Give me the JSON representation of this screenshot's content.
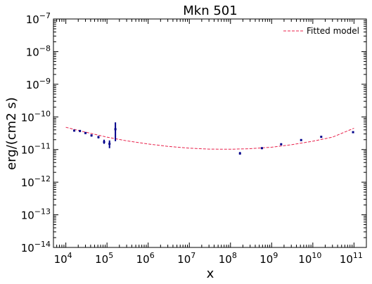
{
  "chart_data": {
    "type": "scatter",
    "title": "Mkn 501",
    "xlabel": "x",
    "ylabel": "erg/(cm2 s)",
    "xscale": "log",
    "yscale": "log",
    "xlim": [
      5000,
      200000000000.0
    ],
    "ylim": [
      1e-14,
      1e-07
    ],
    "x_ticks": [
      {
        "base": "10",
        "exp": "4",
        "value": 10000.0
      },
      {
        "base": "10",
        "exp": "5",
        "value": 100000.0
      },
      {
        "base": "10",
        "exp": "6",
        "value": 1000000.0
      },
      {
        "base": "10",
        "exp": "7",
        "value": 10000000.0
      },
      {
        "base": "10",
        "exp": "8",
        "value": 100000000.0
      },
      {
        "base": "10",
        "exp": "9",
        "value": 1000000000.0
      },
      {
        "base": "10",
        "exp": "10",
        "value": 10000000000.0
      },
      {
        "base": "10",
        "exp": "11",
        "value": 100000000000.0
      }
    ],
    "y_ticks": [
      {
        "base": "10",
        "exp": "−7",
        "value": 1e-07
      },
      {
        "base": "10",
        "exp": "−8",
        "value": 1e-08
      },
      {
        "base": "10",
        "exp": "−9",
        "value": 1e-09
      },
      {
        "base": "10",
        "exp": "−10",
        "value": 1e-10
      },
      {
        "base": "10",
        "exp": "−11",
        "value": 1e-11
      },
      {
        "base": "10",
        "exp": "−12",
        "value": 1e-12
      },
      {
        "base": "10",
        "exp": "−13",
        "value": 1e-13
      },
      {
        "base": "10",
        "exp": "−14",
        "value": 1e-14
      }
    ],
    "legend": {
      "position": "top-right",
      "entries": [
        {
          "label": "Fitted model",
          "style": "dashed",
          "color": "#e8214b"
        }
      ]
    },
    "data_points": [
      {
        "x": 16000.0,
        "y": 3.8e-11,
        "ylo": 3.6e-11,
        "yhi": 4e-11
      },
      {
        "x": 22000.0,
        "y": 3.7e-11,
        "ylo": 3.5e-11,
        "yhi": 3.9e-11
      },
      {
        "x": 30000.0,
        "y": 3.2e-11,
        "ylo": 3e-11,
        "yhi": 3.4e-11
      },
      {
        "x": 42000.0,
        "y": 2.7e-11,
        "ylo": 2.5e-11,
        "yhi": 2.9e-11
      },
      {
        "x": 62000.0,
        "y": 2.4e-11,
        "ylo": 2.2e-11,
        "yhi": 2.6e-11
      },
      {
        "x": 85000.0,
        "y": 1.7e-11,
        "ylo": 1.5e-11,
        "yhi": 2e-11
      },
      {
        "x": 115000.0,
        "y": 1.5e-11,
        "ylo": 1.1e-11,
        "yhi": 1.9e-11
      },
      {
        "x": 160000.0,
        "y": 4.2e-11,
        "ylo": 1.8e-11,
        "yhi": 6.8e-11
      },
      {
        "x": 170000000.0,
        "y": 7.6e-12,
        "ylo": 7e-12,
        "yhi": 8.4e-12
      },
      {
        "x": 580000000.0,
        "y": 1.1e-11,
        "ylo": 1.05e-11,
        "yhi": 1.15e-11
      },
      {
        "x": 1700000000.0,
        "y": 1.45e-11,
        "ylo": 1.4e-11,
        "yhi": 1.5e-11
      },
      {
        "x": 5200000000.0,
        "y": 1.95e-11,
        "ylo": 1.85e-11,
        "yhi": 2.05e-11
      },
      {
        "x": 16000000000.0,
        "y": 2.45e-11,
        "ylo": 2.35e-11,
        "yhi": 2.55e-11
      },
      {
        "x": 95000000000.0,
        "y": 3.4e-11,
        "ylo": 3.2e-11,
        "yhi": 3.6e-11
      }
    ],
    "fitted_model": {
      "name": "Fitted model",
      "x": [
        10000.0,
        30000.0,
        100000.0,
        300000.0,
        1000000.0,
        3000000.0,
        10000000.0,
        30000000.0,
        100000000.0,
        300000000.0,
        1000000000.0,
        3000000000.0,
        10000000000.0,
        30000000000.0,
        100000000000.0
      ],
      "y": [
        4.8e-11,
        3.4e-11,
        2.4e-11,
        1.85e-11,
        1.48e-11,
        1.25e-11,
        1.1e-11,
        1.03e-11,
        1.02e-11,
        1.06e-11,
        1.18e-11,
        1.4e-11,
        1.8e-11,
        2.4e-11,
        4.5e-11
      ]
    },
    "colors": {
      "points": "#00008b",
      "model": "#e8214b"
    }
  }
}
